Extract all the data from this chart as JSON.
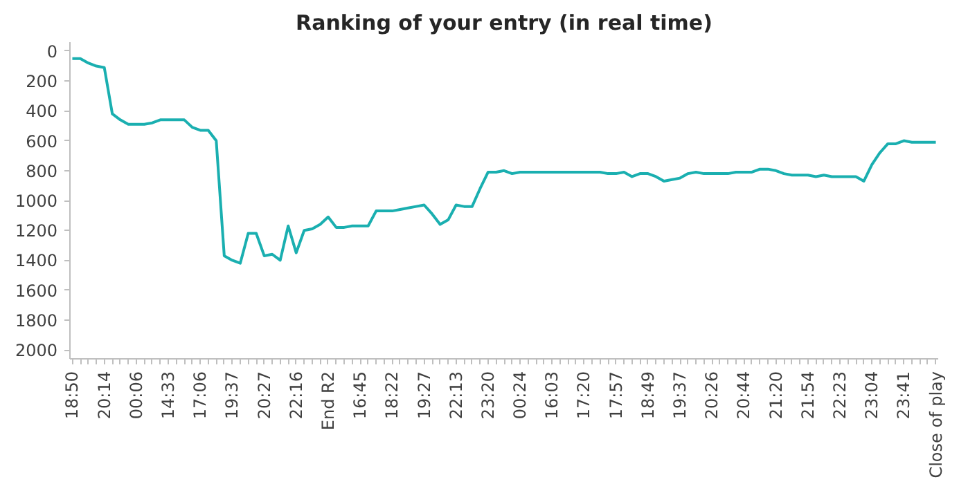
{
  "chart_data": {
    "type": "line",
    "title": "Ranking of your entry (in real time)",
    "categories": [
      "18:50",
      null,
      null,
      null,
      "20:14",
      null,
      null,
      null,
      "00:06",
      null,
      null,
      null,
      "14:33",
      null,
      null,
      null,
      "17:06",
      null,
      null,
      null,
      "19:37",
      null,
      null,
      null,
      "20:27",
      null,
      null,
      null,
      "22:16",
      null,
      null,
      null,
      "End R2",
      null,
      null,
      null,
      "16:45",
      null,
      null,
      null,
      "18:22",
      null,
      null,
      null,
      "19:27",
      null,
      null,
      null,
      "22:13",
      null,
      null,
      null,
      "23:20",
      null,
      null,
      null,
      "00:24",
      null,
      null,
      null,
      "16:03",
      null,
      null,
      null,
      "17:20",
      null,
      null,
      null,
      "17:57",
      null,
      null,
      null,
      "18:49",
      null,
      null,
      null,
      "19:37",
      null,
      null,
      null,
      "20:26",
      null,
      null,
      null,
      "20:44",
      null,
      null,
      null,
      "21:20",
      null,
      null,
      null,
      "21:54",
      null,
      null,
      null,
      "22:23",
      null,
      null,
      null,
      "23:04",
      null,
      null,
      null,
      "23:41",
      null,
      null,
      null,
      "Close of play"
    ],
    "series": [
      {
        "color": "#1aafb0",
        "values": [
          50,
          50,
          80,
          100,
          110,
          420,
          460,
          490,
          490,
          490,
          480,
          460,
          460,
          460,
          460,
          510,
          530,
          530,
          600,
          1370,
          1400,
          1420,
          1220,
          1220,
          1370,
          1360,
          1400,
          1170,
          1350,
          1200,
          1190,
          1160,
          1110,
          1180,
          1180,
          1170,
          1170,
          1170,
          1070,
          1070,
          1070,
          1060,
          1050,
          1040,
          1030,
          1090,
          1160,
          1130,
          1030,
          1040,
          1040,
          920,
          810,
          810,
          800,
          820,
          810,
          810,
          810,
          810,
          810,
          810,
          810,
          810,
          810,
          810,
          810,
          820,
          820,
          810,
          840,
          820,
          820,
          840,
          870,
          860,
          850,
          820,
          810,
          820,
          820,
          820,
          820,
          810,
          810,
          810,
          790,
          790,
          800,
          820,
          830,
          830,
          830,
          840,
          830,
          840,
          840,
          840,
          840,
          870,
          760,
          680,
          620,
          620,
          600,
          610,
          610,
          610,
          610
        ]
      }
    ],
    "ylim": [
      2060,
      -60
    ],
    "yticks": [
      0,
      200,
      400,
      600,
      800,
      1000,
      1200,
      1400,
      1600,
      1800,
      2000
    ],
    "grid": false,
    "marker": "none",
    "line_style": "solid"
  }
}
